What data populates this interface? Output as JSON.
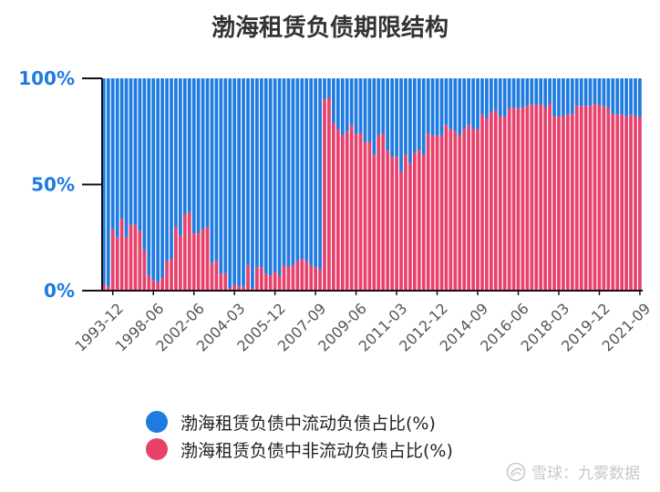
{
  "chart_data": {
    "type": "bar",
    "stacked": true,
    "title": "渤海租赁负债期限结构",
    "ylim": [
      0,
      100
    ],
    "yticks": [
      "0%",
      "50%",
      "100%"
    ],
    "grid": false,
    "legend_position": "bottom",
    "x_tick_labels": [
      "1993-12",
      "1998-06",
      "2002-06",
      "2004-03",
      "2005-12",
      "2007-09",
      "2009-06",
      "2011-03",
      "2012-12",
      "2014-09",
      "2016-06",
      "2018-03",
      "2019-12",
      "2021-09"
    ],
    "x_tick_indices": [
      2,
      11,
      20,
      29,
      38,
      47,
      56,
      65,
      74,
      83,
      92,
      101,
      110,
      119
    ],
    "series": [
      {
        "name": "渤海租赁负债中流动负债占比(%)",
        "color": "#1f7be0",
        "values": [
          97,
          98,
          71,
          75,
          66,
          75,
          69,
          69,
          72,
          81,
          93,
          95,
          96,
          94,
          86,
          85,
          70,
          74,
          64,
          63,
          73,
          73,
          71,
          70,
          87,
          86,
          92,
          92,
          99,
          97,
          98,
          98,
          88,
          99,
          89,
          89,
          92,
          93,
          91,
          93,
          88,
          89,
          88,
          86,
          85,
          86,
          88,
          89,
          90,
          10,
          9,
          21,
          24,
          27,
          25,
          22,
          26,
          26,
          30,
          30,
          36,
          27,
          26,
          34,
          37,
          37,
          44,
          36,
          40,
          35,
          34,
          36,
          26,
          27,
          27,
          27,
          22,
          24,
          25,
          27,
          24,
          22,
          24,
          24,
          17,
          19,
          16,
          15,
          18,
          18,
          14,
          14,
          14,
          14,
          13,
          12,
          13,
          12,
          14,
          12,
          18,
          18,
          18,
          17,
          17,
          13,
          13,
          13,
          13,
          12,
          13,
          13,
          14,
          17,
          17,
          17,
          18,
          17,
          18,
          18
        ]
      },
      {
        "name": "渤海租赁负债中非流动负债占比(%)",
        "color": "#e8416b",
        "values": [
          3,
          2,
          29,
          25,
          34,
          25,
          31,
          31,
          28,
          19,
          7,
          5,
          4,
          6,
          14,
          15,
          30,
          26,
          36,
          37,
          27,
          27,
          29,
          30,
          13,
          14,
          8,
          8,
          1,
          3,
          2,
          2,
          12,
          1,
          11,
          11,
          8,
          7,
          9,
          7,
          12,
          11,
          12,
          14,
          15,
          14,
          12,
          11,
          10,
          90,
          91,
          79,
          76,
          73,
          75,
          78,
          74,
          74,
          70,
          70,
          64,
          73,
          74,
          66,
          63,
          63,
          56,
          64,
          60,
          65,
          66,
          64,
          74,
          73,
          73,
          73,
          78,
          76,
          75,
          73,
          76,
          78,
          76,
          76,
          83,
          81,
          84,
          85,
          82,
          82,
          86,
          86,
          86,
          86,
          87,
          88,
          87,
          88,
          86,
          88,
          82,
          82,
          82,
          83,
          83,
          87,
          87,
          87,
          87,
          88,
          87,
          87,
          86,
          83,
          83,
          83,
          82,
          83,
          82,
          82
        ]
      }
    ]
  },
  "watermark": "雪球：九雾数据"
}
